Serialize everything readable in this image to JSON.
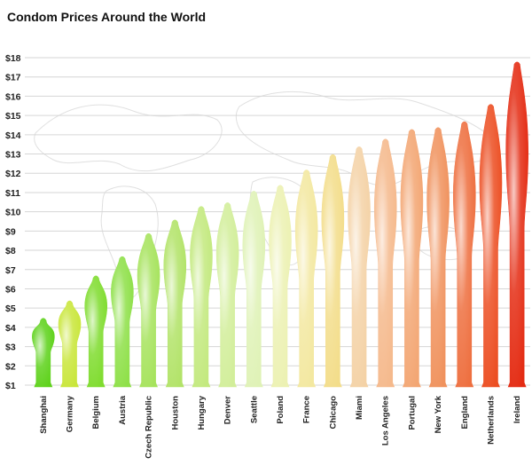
{
  "chart_data": {
    "type": "bar",
    "title": "Condom Prices Around the World",
    "xlabel": "",
    "ylabel": "",
    "ylim": [
      1,
      18
    ],
    "yticks": [
      "$1",
      "$2",
      "$3",
      "$4",
      "$5",
      "$6",
      "$7",
      "$8",
      "$9",
      "$10",
      "$11",
      "$12",
      "$13",
      "$14",
      "$15",
      "$16",
      "$17",
      "$18"
    ],
    "grid": true,
    "categories": [
      "Shanghai",
      "Germany",
      "Belgium",
      "Austria",
      "Czech Republic",
      "Houston",
      "Hungary",
      "Denver",
      "Seattle",
      "Poland",
      "France",
      "Chicago",
      "Miami",
      "Los Angeles",
      "Portugal",
      "New York",
      "England",
      "Netherlands",
      "Ireland"
    ],
    "values": [
      4.5,
      5.4,
      6.7,
      7.7,
      8.9,
      9.6,
      10.3,
      10.5,
      11.1,
      11.4,
      12.2,
      13.0,
      13.4,
      13.8,
      14.3,
      14.4,
      14.7,
      15.6,
      17.8
    ],
    "colors": [
      "#5ed21b",
      "#c9e63a",
      "#7fdc2e",
      "#8ee048",
      "#a6e35c",
      "#b2e368",
      "#c3e97e",
      "#d2ee9a",
      "#dff2b6",
      "#ecf1b2",
      "#f3e8a0",
      "#f3dd8a",
      "#f4d2a6",
      "#f5b98c",
      "#f3a673",
      "#f0925d",
      "#ee6f3f",
      "#ec4e22",
      "#e42b12"
    ]
  }
}
